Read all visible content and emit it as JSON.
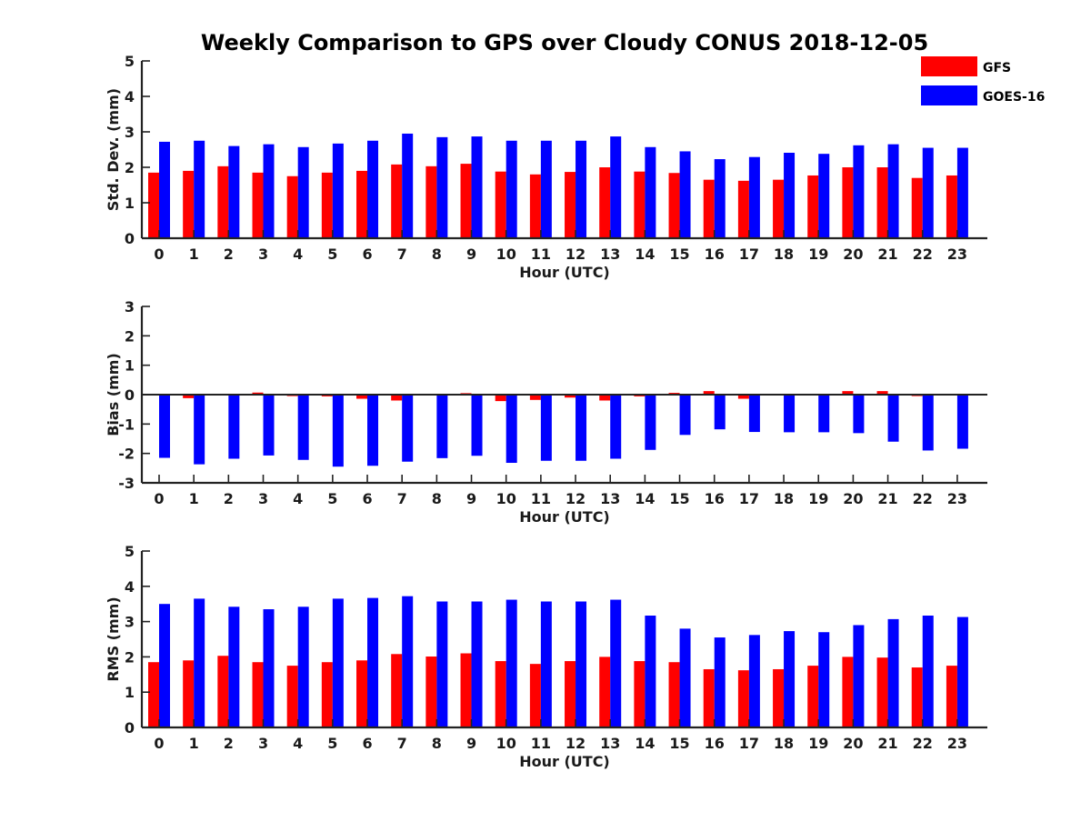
{
  "chart_data": {
    "title": "Weekly Comparison to GPS over Cloudy CONUS 2018-12-05",
    "type": "bar",
    "legend": {
      "placement": "top-right",
      "items": [
        {
          "name": "GFS",
          "color": "#ff0000"
        },
        {
          "name": "GOES-16",
          "color": "#0000ff"
        }
      ]
    },
    "categories": [
      "0",
      "1",
      "2",
      "3",
      "4",
      "5",
      "6",
      "7",
      "8",
      "9",
      "10",
      "11",
      "12",
      "13",
      "14",
      "15",
      "16",
      "17",
      "18",
      "19",
      "20",
      "21",
      "22",
      "23"
    ],
    "panels": [
      {
        "type": "bar",
        "xlabel": "Hour (UTC)",
        "ylabel": "Std. Dev. (mm)",
        "ylim": [
          0,
          5
        ],
        "yticks": [
          "0",
          "1",
          "2",
          "3",
          "4",
          "5"
        ],
        "series": [
          {
            "name": "GFS",
            "color": "#ff0000",
            "values": [
              1.85,
              1.9,
              2.03,
              1.85,
              1.75,
              1.85,
              1.9,
              2.08,
              2.03,
              2.1,
              1.88,
              1.8,
              1.87,
              2.0,
              1.88,
              1.84,
              1.65,
              1.62,
              1.65,
              1.77,
              2.0,
              2.0,
              1.7,
              1.77
            ]
          },
          {
            "name": "GOES-16",
            "color": "#0000ff",
            "values": [
              2.72,
              2.75,
              2.6,
              2.65,
              2.57,
              2.67,
              2.75,
              2.95,
              2.85,
              2.87,
              2.75,
              2.75,
              2.75,
              2.87,
              2.57,
              2.45,
              2.23,
              2.29,
              2.41,
              2.38,
              2.62,
              2.65,
              2.55,
              2.55
            ]
          }
        ]
      },
      {
        "type": "bar",
        "xlabel": "Hour (UTC)",
        "ylabel": "Bias (mm)",
        "ylim": [
          -3,
          3
        ],
        "yticks": [
          "-3",
          "-2",
          "-1",
          "0",
          "1",
          "2",
          "3"
        ],
        "series": [
          {
            "name": "GFS",
            "color": "#ff0000",
            "values": [
              -0.02,
              -0.12,
              -0.02,
              0.07,
              -0.05,
              -0.06,
              -0.14,
              -0.2,
              -0.03,
              0.05,
              -0.22,
              -0.18,
              -0.1,
              -0.2,
              -0.06,
              0.06,
              0.12,
              -0.14,
              -0.03,
              0.0,
              0.12,
              0.12,
              -0.05,
              0.03
            ]
          },
          {
            "name": "GOES-16",
            "color": "#0000ff",
            "values": [
              -2.15,
              -2.37,
              -2.18,
              -2.07,
              -2.22,
              -2.45,
              -2.42,
              -2.28,
              -2.16,
              -2.08,
              -2.32,
              -2.25,
              -2.25,
              -2.18,
              -1.88,
              -1.37,
              -1.18,
              -1.27,
              -1.28,
              -1.28,
              -1.31,
              -1.6,
              -1.9,
              -1.84
            ]
          }
        ]
      },
      {
        "type": "bar",
        "xlabel": "Hour (UTC)",
        "ylabel": "RMS (mm)",
        "ylim": [
          0,
          5
        ],
        "yticks": [
          "0",
          "1",
          "2",
          "3",
          "4",
          "5"
        ],
        "series": [
          {
            "name": "GFS",
            "color": "#ff0000",
            "values": [
              1.85,
              1.9,
              2.03,
              1.85,
              1.75,
              1.85,
              1.9,
              2.08,
              2.01,
              2.1,
              1.88,
              1.8,
              1.88,
              2.0,
              1.88,
              1.85,
              1.65,
              1.62,
              1.65,
              1.75,
              2.0,
              1.98,
              1.7,
              1.75
            ]
          },
          {
            "name": "GOES-16",
            "color": "#0000ff",
            "values": [
              3.5,
              3.65,
              3.42,
              3.35,
              3.42,
              3.65,
              3.67,
              3.72,
              3.57,
              3.57,
              3.62,
              3.57,
              3.57,
              3.62,
              3.17,
              2.8,
              2.55,
              2.62,
              2.73,
              2.7,
              2.9,
              3.07,
              3.17,
              3.13
            ]
          }
        ]
      }
    ]
  }
}
